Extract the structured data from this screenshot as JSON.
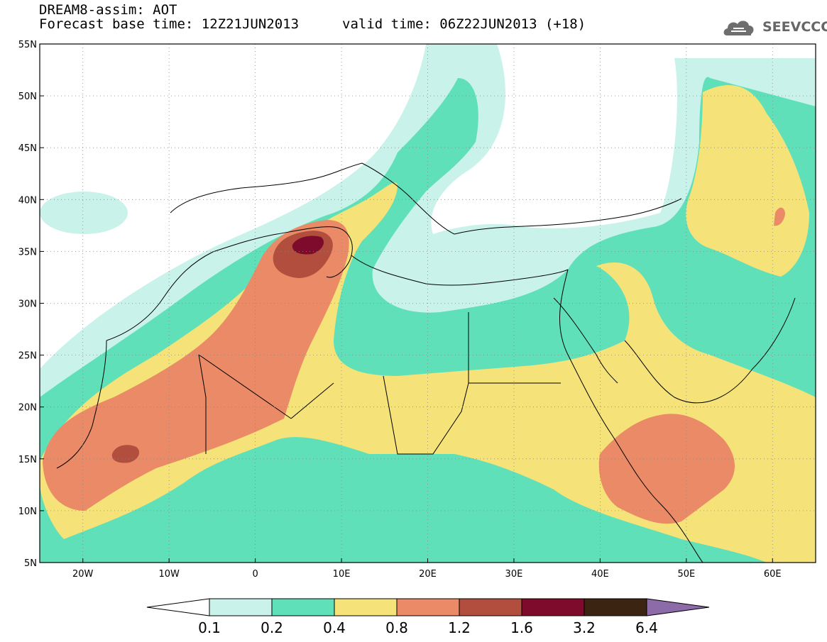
{
  "header": {
    "model_title": "DREAM8-assim: AOT",
    "base_time": "Forecast base time: 12Z21JUN2013",
    "valid_time": "valid time: 06Z22JUN2013 (+18)"
  },
  "logo": {
    "text": "SEEVCCC",
    "icon": "cloud-icon"
  },
  "map": {
    "lat_labels": [
      "55N",
      "50N",
      "45N",
      "40N",
      "35N",
      "30N",
      "25N",
      "20N",
      "15N",
      "10N",
      "5N"
    ],
    "lon_labels": [
      "20W",
      "10W",
      "0",
      "10E",
      "20E",
      "30E",
      "40E",
      "50E",
      "60E"
    ],
    "lat_values": [
      55,
      50,
      45,
      40,
      35,
      30,
      25,
      20,
      15,
      10,
      5
    ],
    "lon_values": [
      -20,
      -10,
      0,
      10,
      20,
      30,
      40,
      50,
      60
    ],
    "lon_range": [
      -25,
      65
    ],
    "lat_range": [
      5,
      55
    ],
    "grid": "dotted"
  },
  "colorbar": {
    "levels": [
      "0.1",
      "0.2",
      "0.4",
      "0.8",
      "1.2",
      "1.6",
      "3.2",
      "6.4"
    ],
    "colors": [
      "#ffffff",
      "#c8f2ea",
      "#5fe0b8",
      "#f5e278",
      "#ea8a66",
      "#b14e3e",
      "#7e0a2c",
      "#3c2412",
      "#8d6aa8"
    ]
  }
}
